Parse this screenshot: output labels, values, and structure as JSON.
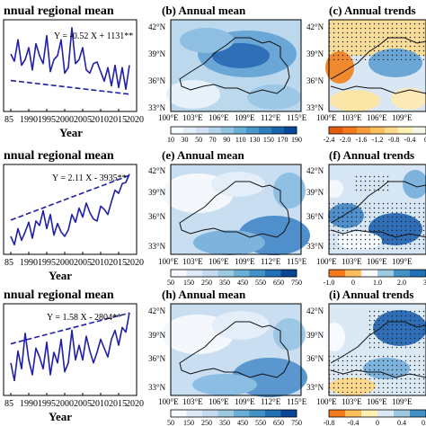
{
  "figure": {
    "rows": [
      {
        "ts": {
          "title": "nnual regional mean",
          "equation": "Y = -0.52 X + 1131**",
          "xlabel": "Year",
          "xticks": [
            "85",
            "1990",
            "1995",
            "2000",
            "2005",
            "2010",
            "2015",
            "2020"
          ]
        },
        "maps": [
          {
            "panel": "map-b",
            "title": "(b) Annual mean",
            "lat": [
              "42°N",
              "39°N",
              "36°N",
              "33°N"
            ],
            "lon": [
              "100°E",
              "103°E",
              "106°E",
              "109°E",
              "112°E",
              "115°E"
            ],
            "cbar": [
              "10",
              "30",
              "50",
              "70",
              "90",
              "110",
              "130",
              "150",
              "170",
              "190"
            ],
            "cbar_colors": [
              "#f7fbff",
              "#e4eef9",
              "#cfe1f2",
              "#b3d3e8",
              "#93c3df",
              "#6baed6",
              "#4a98c9",
              "#2e7ebc",
              "#1764ab",
              "#08479b"
            ]
          },
          {
            "panel": "map-c",
            "title": "(c) Annual trends",
            "lat": [
              "42°N",
              "39°N",
              "36°N",
              "33°N"
            ],
            "lon": [
              "100°E",
              "103°E",
              "106°E",
              "109°E"
            ],
            "cbar": [
              "-2.4",
              "-2.0",
              "-1.6",
              "-1.2",
              "-0.8",
              "-0.4",
              "0"
            ],
            "cbar_colors": [
              "#e55b0c",
              "#f47a1d",
              "#f99d3a",
              "#fdbf5e",
              "#fed98e",
              "#fff1b5",
              "#f4f8e6"
            ]
          }
        ]
      },
      {
        "ts": {
          "title": "nnual regional mean",
          "equation": "Y = 2.11 X - 3935**",
          "xlabel": "Year",
          "xticks": [
            "85",
            "1990",
            "1995",
            "2000",
            "2005",
            "2010",
            "2015",
            "2020"
          ]
        },
        "maps": [
          {
            "panel": "map-e",
            "title": "(e) Annual mean",
            "lat": [
              "42°N",
              "39°N",
              "36°N",
              "33°N"
            ],
            "lon": [
              "100°E",
              "103°E",
              "106°E",
              "109°E",
              "112°E",
              "115°E"
            ],
            "cbar": [
              "50",
              "150",
              "250",
              "350",
              "450",
              "550",
              "650",
              "750"
            ],
            "cbar_colors": [
              "#f7fbff",
              "#deebf7",
              "#c6dbef",
              "#9ecae1",
              "#6baed6",
              "#4292c6",
              "#2171b5",
              "#084594"
            ]
          },
          {
            "panel": "map-f",
            "title": "(f) Annual trends",
            "lat": [
              "42°N",
              "39°N",
              "36°N",
              "33°N"
            ],
            "lon": [
              "100°E",
              "103°E",
              "106°E",
              "109°E"
            ],
            "cbar": [
              "-1.0",
              "0",
              "1.0",
              "2.0",
              "3."
            ],
            "cbar_colors": [
              "#f47a1d",
              "#fdbf5e",
              "#f7fbff",
              "#9ecae1",
              "#4292c6",
              "#2171b5"
            ]
          }
        ]
      },
      {
        "ts": {
          "title": "nnual regional mean",
          "equation": "Y = 1.58 X - 2804**",
          "xlabel": "Year",
          "xticks": [
            "85",
            "1990",
            "1995",
            "2000",
            "2005",
            "2010",
            "2015",
            "2020"
          ]
        },
        "maps": [
          {
            "panel": "map-h",
            "title": "(h) Annual mean",
            "lat": [
              "42°N",
              "39°N",
              "36°N",
              "33°N"
            ],
            "lon": [
              "100°E",
              "103°E",
              "106°E",
              "109°E",
              "112°E",
              "115°E"
            ],
            "cbar": [
              "50",
              "150",
              "250",
              "350",
              "450",
              "550",
              "650",
              "750"
            ],
            "cbar_colors": [
              "#f7fbff",
              "#deebf7",
              "#c6dbef",
              "#9ecae1",
              "#6baed6",
              "#4292c6",
              "#2171b5",
              "#084594"
            ]
          },
          {
            "panel": "map-i",
            "title": "(i) Annual trends",
            "lat": [
              "42°N",
              "39°N",
              "36°N",
              "33°N"
            ],
            "lon": [
              "100°E",
              "103°E",
              "106°E",
              "109°E"
            ],
            "cbar": [
              "-0.8",
              "-0.4",
              "0",
              "0.4",
              "0.8"
            ],
            "cbar_colors": [
              "#f47a1d",
              "#fdbf5e",
              "#fff1b5",
              "#dbe9f6",
              "#9ecae1",
              "#4292c6"
            ]
          }
        ]
      }
    ]
  },
  "chart_data": [
    {
      "type": "line",
      "title": "nnual regional mean",
      "xlabel": "Year",
      "ylabel": "",
      "equation": "Y = -0.52 X + 1131**",
      "xlim": [
        1983,
        2020
      ],
      "ylim": [
        60,
        175
      ],
      "x": [
        1985,
        1986,
        1987,
        1988,
        1989,
        1990,
        1991,
        1992,
        1993,
        1994,
        1995,
        1996,
        1997,
        1998,
        1999,
        2000,
        2001,
        2002,
        2003,
        2004,
        2005,
        2006,
        2007,
        2008,
        2009,
        2010,
        2011,
        2012,
        2013,
        2014,
        2015,
        2016,
        2017,
        2018
      ],
      "series": [
        {
          "values": [
            132,
            123,
            150,
            118,
            125,
            140,
            112,
            145,
            130,
            120,
            155,
            110,
            125,
            130,
            150,
            108,
            115,
            165,
            120,
            125,
            140,
            112,
            108,
            120,
            122,
            110,
            98,
            115,
            92,
            118,
            90,
            115,
            88,
            118
          ]
        }
      ],
      "trend": {
        "slope": -0.52,
        "intercept": 1131
      },
      "colors": {
        "line": "#1f1fa8"
      }
    },
    {
      "type": "line",
      "title": "nnual regional mean",
      "xlabel": "Year",
      "ylabel": "",
      "equation": "Y = 2.11 X - 3935**",
      "xlim": [
        1983,
        2020
      ],
      "ylim": [
        200,
        340
      ],
      "x": [
        1985,
        1986,
        1987,
        1988,
        1989,
        1990,
        1991,
        1992,
        1993,
        1994,
        1995,
        1996,
        1997,
        1998,
        1999,
        2000,
        2001,
        2002,
        2003,
        2004,
        2005,
        2006,
        2007,
        2008,
        2009,
        2010,
        2011,
        2012,
        2013,
        2014,
        2015,
        2016,
        2017,
        2018
      ],
      "series": [
        {
          "values": [
            228,
            215,
            240,
            222,
            235,
            250,
            225,
            252,
            245,
            268,
            240,
            262,
            230,
            248,
            235,
            228,
            238,
            262,
            250,
            272,
            258,
            280,
            265,
            255,
            252,
            275,
            270,
            262,
            282,
            300,
            295,
            310,
            312,
            325
          ]
        }
      ],
      "trend": {
        "slope": 2.11,
        "intercept": -3935
      },
      "colors": {
        "line": "#1f1fa8"
      }
    },
    {
      "type": "line",
      "title": "nnual regional mean",
      "xlabel": "Year",
      "ylabel": "",
      "equation": "Y = 1.58 X - 2804**",
      "xlim": [
        1983,
        2020
      ],
      "ylim": [
        245,
        400
      ],
      "x": [
        1985,
        1986,
        1987,
        1988,
        1989,
        1990,
        1991,
        1992,
        1993,
        1994,
        1995,
        1996,
        1997,
        1998,
        1999,
        2000,
        2001,
        2002,
        2003,
        2004,
        2005,
        2006,
        2007,
        2008,
        2009,
        2010,
        2011,
        2012,
        2013,
        2014,
        2015,
        2016,
        2017,
        2018
      ],
      "series": [
        {
          "values": [
            300,
            270,
            320,
            290,
            350,
            305,
            280,
            325,
            310,
            290,
            335,
            280,
            318,
            300,
            340,
            285,
            300,
            355,
            305,
            330,
            305,
            345,
            320,
            300,
            318,
            340,
            325,
            310,
            340,
            355,
            330,
            360,
            352,
            385
          ]
        }
      ],
      "trend": {
        "slope": 1.58,
        "intercept": -2804
      },
      "colors": {
        "line": "#1f1fa8"
      }
    }
  ]
}
